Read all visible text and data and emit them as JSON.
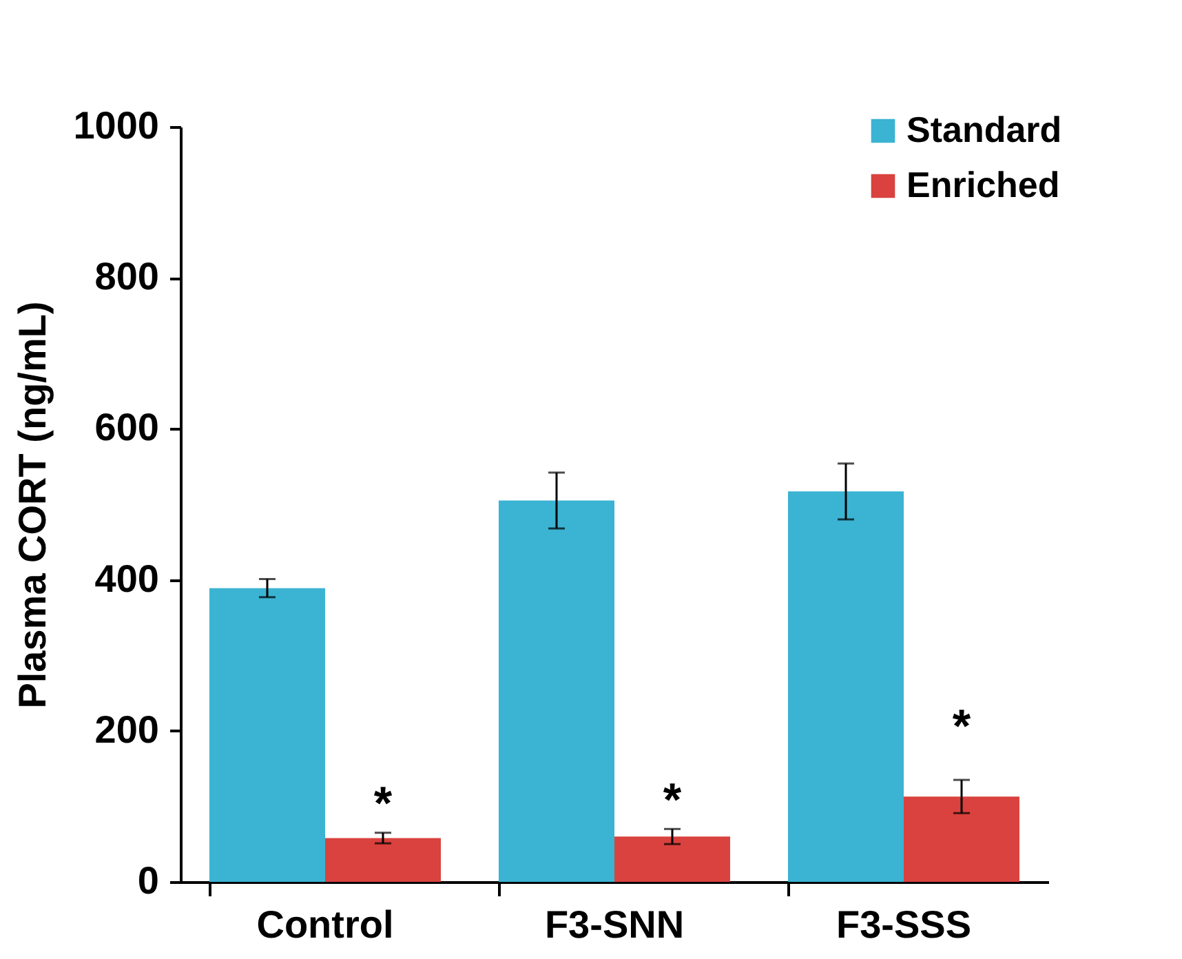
{
  "chart_data": {
    "type": "bar",
    "ylabel": "Plasma CORT (ng/mL)",
    "categories": [
      "Control",
      "F3-SNN",
      "F3-SSS"
    ],
    "series": [
      {
        "name": "Standard",
        "color": "#3bb3d3",
        "values": [
          389,
          505,
          517
        ],
        "errors": [
          12,
          37,
          37
        ]
      },
      {
        "name": "Enriched",
        "color": "#d9423e",
        "values": [
          58,
          60,
          113
        ],
        "errors": [
          7,
          10,
          22
        ]
      }
    ],
    "ylim": [
      0,
      1000
    ],
    "yticks": [
      0,
      200,
      400,
      600,
      800,
      1000
    ],
    "annotations": [
      {
        "text": "*",
        "x": "Control",
        "y": 112
      },
      {
        "text": "*",
        "x": "F3-SNN",
        "y": 117
      },
      {
        "text": "*",
        "x": "F3-SSS",
        "y": 214
      }
    ],
    "legend": "top right"
  }
}
